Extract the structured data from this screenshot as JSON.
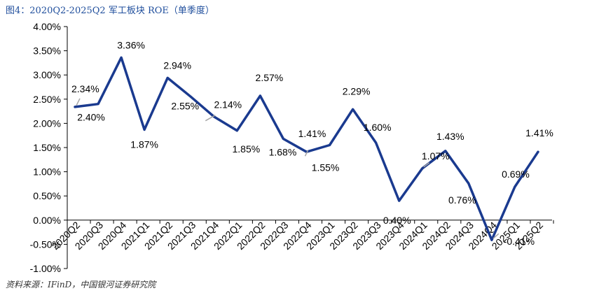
{
  "header": {
    "title": "图4：2020Q2-2025Q2 军工板块 ROE（单季度）"
  },
  "footer": {
    "source": "资料来源：IFinD，中国银河证券研究院"
  },
  "chart_data": {
    "type": "line",
    "title": "2020Q2-2025Q2 军工板块 ROE（单季度）",
    "xlabel": "",
    "ylabel": "",
    "ylim": [
      -0.01,
      0.04
    ],
    "y_ticks": [
      "4.00%",
      "3.50%",
      "3.00%",
      "2.50%",
      "2.00%",
      "1.50%",
      "1.00%",
      "0.50%",
      "0.00%",
      "-0.50%",
      "-1.00%"
    ],
    "y_tick_values": [
      0.04,
      0.035,
      0.03,
      0.025,
      0.02,
      0.015,
      0.01,
      0.005,
      0.0,
      -0.005,
      -0.01
    ],
    "categories": [
      "2020Q2",
      "2020Q3",
      "2020Q4",
      "2021Q1",
      "2021Q2",
      "2021Q3",
      "2021Q4",
      "2022Q1",
      "2022Q2",
      "2022Q3",
      "2022Q4",
      "2023Q1",
      "2023Q2",
      "2023Q3",
      "2023Q4",
      "2024Q1",
      "2024Q2",
      "2024Q3",
      "2024Q4",
      "2025Q1",
      "2025Q2"
    ],
    "series": [
      {
        "name": "军工板块 ROE（单季度）",
        "color": "#1a3a8f",
        "values": [
          0.0234,
          0.024,
          0.0336,
          0.0187,
          0.0294,
          0.0255,
          0.0214,
          0.0185,
          0.0257,
          0.0168,
          0.0141,
          0.0155,
          0.0229,
          0.016,
          0.004,
          0.0107,
          0.0143,
          0.0076,
          -0.0041,
          0.0069,
          0.0141
        ],
        "labels": [
          "2.34%",
          "2.40%",
          "3.36%",
          "1.87%",
          "2.94%",
          "2.55%",
          "2.14%",
          "1.85%",
          "2.57%",
          "1.68%",
          "1.41%",
          "1.55%",
          "2.29%",
          "1.60%",
          "0.40%",
          "1.07%",
          "1.43%",
          "0.76%",
          "-0.41%",
          "0.69%",
          "1.41%"
        ]
      }
    ],
    "grid": false,
    "legend": "none"
  }
}
